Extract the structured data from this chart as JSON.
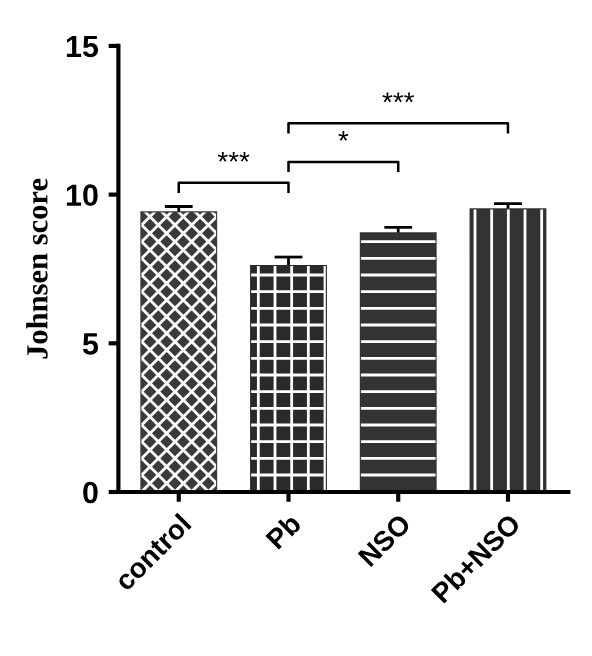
{
  "chart_data": {
    "type": "bar",
    "ylabel": "Johnsen score",
    "categories": [
      "control",
      "Pb",
      "NSO",
      "Pb+NSO"
    ],
    "values": [
      9.4,
      7.6,
      8.7,
      9.5
    ],
    "errors": [
      0.2,
      0.3,
      0.2,
      0.2
    ],
    "colors": [
      "#3a3a3a",
      "#2a2a2a",
      "#333333",
      "#333333"
    ],
    "ylim": [
      0,
      15
    ],
    "yticks": [
      0,
      5,
      10,
      15
    ],
    "grid": false,
    "legend": false,
    "annotations": [
      "***",
      "*",
      "***"
    ]
  }
}
